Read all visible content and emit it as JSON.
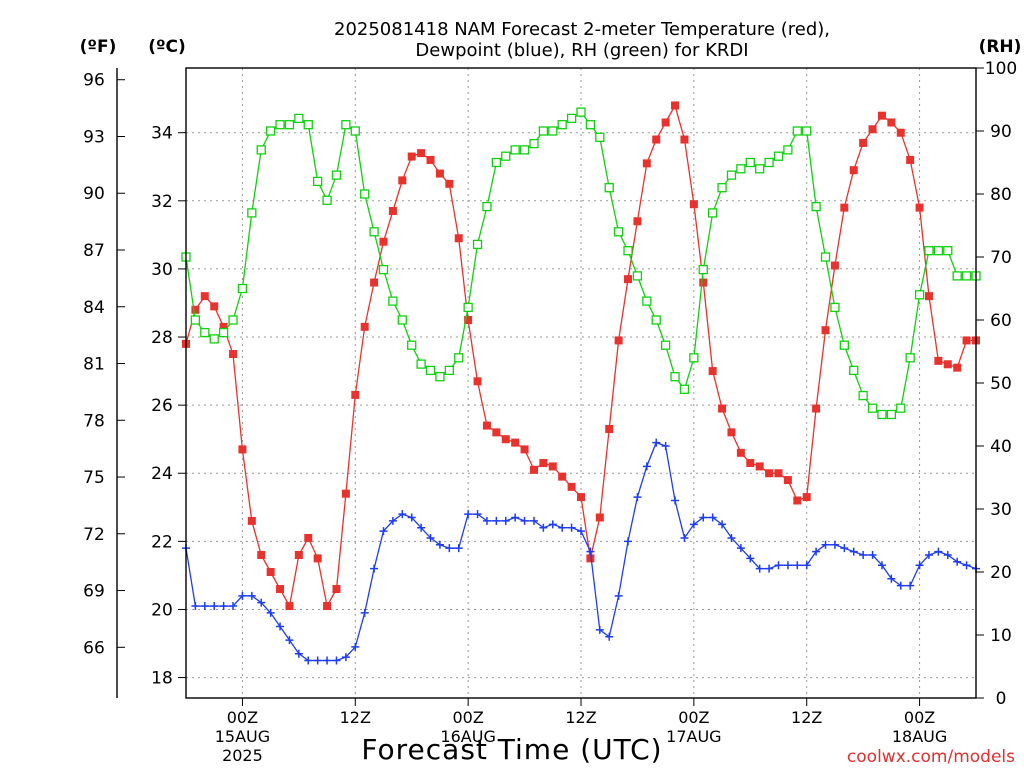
{
  "chart_data": {
    "type": "line",
    "title_line1": "2025081418 NAM Forecast 2-meter Temperature (red),",
    "title_line2": "Dewpoint (blue), RH (green) for KRDI",
    "xlabel": "Forecast Time (UTC)",
    "left_axis_label_f": "(ºF)",
    "left_axis_label_c": "(ºC)",
    "right_axis_label": "(RH)",
    "watermark": "coolwx.com/models",
    "x_start_hour": 18,
    "x_end_hour": 102,
    "ylim_c": [
      17.4,
      35.9
    ],
    "ylim_rh": [
      0,
      100
    ],
    "y_ticks_c": [
      18,
      20,
      22,
      24,
      26,
      28,
      30,
      32,
      34
    ],
    "y_ticks_f": [
      66,
      69,
      72,
      75,
      78,
      81,
      84,
      87,
      90,
      93,
      96
    ],
    "y_ticks_rh": [
      0,
      10,
      20,
      30,
      40,
      50,
      60,
      70,
      80,
      90,
      100
    ],
    "x_ticks": [
      {
        "hour": 24,
        "label": "00Z",
        "sub1": "15AUG",
        "sub2": "2025"
      },
      {
        "hour": 36,
        "label": "12Z",
        "sub1": "",
        "sub2": ""
      },
      {
        "hour": 48,
        "label": "00Z",
        "sub1": "16AUG",
        "sub2": ""
      },
      {
        "hour": 60,
        "label": "12Z",
        "sub1": "",
        "sub2": ""
      },
      {
        "hour": 72,
        "label": "00Z",
        "sub1": "17AUG",
        "sub2": ""
      },
      {
        "hour": 84,
        "label": "12Z",
        "sub1": "",
        "sub2": ""
      },
      {
        "hour": 96,
        "label": "00Z",
        "sub1": "18AUG",
        "sub2": ""
      }
    ],
    "grid": true,
    "colors": {
      "temperature": "#e8322e",
      "dewpoint": "#1f3cf0",
      "rh": "#10d010",
      "grid": "#9a9a9a"
    },
    "series": [
      {
        "name": "Temperature",
        "key": "temperature",
        "units": "C",
        "marker": "square-filled",
        "x": [
          18,
          19,
          20,
          21,
          22,
          23,
          24,
          25,
          26,
          27,
          28,
          29,
          30,
          31,
          32,
          33,
          34,
          35,
          36,
          37,
          38,
          39,
          40,
          41,
          42,
          43,
          44,
          45,
          46,
          47,
          48,
          49,
          50,
          51,
          52,
          53,
          54,
          55,
          56,
          57,
          58,
          59,
          60,
          61,
          62,
          63,
          64,
          65,
          66,
          67,
          68,
          69,
          70,
          71,
          72,
          73,
          74,
          75,
          76,
          77,
          78,
          79,
          80,
          81,
          82,
          83,
          84,
          85,
          86,
          87,
          88,
          89,
          90,
          91,
          92,
          93,
          94,
          95,
          96,
          97,
          98,
          99,
          100,
          101,
          102
        ],
        "values": [
          27.8,
          28.8,
          29.2,
          28.9,
          28.3,
          27.5,
          24.7,
          22.6,
          21.6,
          21.1,
          20.6,
          20.1,
          21.6,
          22.1,
          21.5,
          20.1,
          20.6,
          23.4,
          26.3,
          28.3,
          29.6,
          30.8,
          31.7,
          32.6,
          33.3,
          33.4,
          33.2,
          32.8,
          32.5,
          30.9,
          28.5,
          26.7,
          25.4,
          25.2,
          25.0,
          24.9,
          24.7,
          24.1,
          24.3,
          24.2,
          23.9,
          23.6,
          23.3,
          21.5,
          22.7,
          25.3,
          27.9,
          29.7,
          31.4,
          33.1,
          33.8,
          34.3,
          34.8,
          33.8,
          31.9,
          29.6,
          27.0,
          25.9,
          25.2,
          24.6,
          24.3,
          24.2,
          24.0,
          24.0,
          23.8,
          23.2,
          23.3,
          25.9,
          28.2,
          30.1,
          31.8,
          32.9,
          33.7,
          34.1,
          34.5,
          34.3,
          34.0,
          33.2,
          31.8,
          29.2,
          27.3,
          27.2,
          27.1,
          27.9,
          27.9
        ]
      },
      {
        "name": "Dewpoint",
        "key": "dewpoint",
        "units": "C",
        "marker": "plus",
        "x": [
          18,
          19,
          20,
          21,
          22,
          23,
          24,
          25,
          26,
          27,
          28,
          29,
          30,
          31,
          32,
          33,
          34,
          35,
          36,
          37,
          38,
          39,
          40,
          41,
          42,
          43,
          44,
          45,
          46,
          47,
          48,
          49,
          50,
          51,
          52,
          53,
          54,
          55,
          56,
          57,
          58,
          59,
          60,
          61,
          62,
          63,
          64,
          65,
          66,
          67,
          68,
          69,
          70,
          71,
          72,
          73,
          74,
          75,
          76,
          77,
          78,
          79,
          80,
          81,
          82,
          83,
          84,
          85,
          86,
          87,
          88,
          89,
          90,
          91,
          92,
          93,
          94,
          95,
          96,
          97,
          98,
          99,
          100,
          101,
          102
        ],
        "values": [
          21.8,
          20.1,
          20.1,
          20.1,
          20.1,
          20.1,
          20.4,
          20.4,
          20.2,
          19.9,
          19.5,
          19.1,
          18.7,
          18.5,
          18.5,
          18.5,
          18.5,
          18.6,
          18.9,
          19.9,
          21.2,
          22.3,
          22.6,
          22.8,
          22.7,
          22.4,
          22.1,
          21.9,
          21.8,
          21.8,
          22.8,
          22.8,
          22.6,
          22.6,
          22.6,
          22.7,
          22.6,
          22.6,
          22.4,
          22.5,
          22.4,
          22.4,
          22.3,
          21.7,
          19.4,
          19.2,
          20.4,
          22.0,
          23.3,
          24.2,
          24.9,
          24.8,
          23.2,
          22.1,
          22.5,
          22.7,
          22.7,
          22.5,
          22.1,
          21.8,
          21.5,
          21.2,
          21.2,
          21.3,
          21.3,
          21.3,
          21.3,
          21.7,
          21.9,
          21.9,
          21.8,
          21.7,
          21.6,
          21.6,
          21.3,
          20.9,
          20.7,
          20.7,
          21.3,
          21.6,
          21.7,
          21.6,
          21.4,
          21.3,
          21.2
        ]
      },
      {
        "name": "RH",
        "key": "rh",
        "units": "%",
        "marker": "square-open",
        "x": [
          18,
          19,
          20,
          21,
          22,
          23,
          24,
          25,
          26,
          27,
          28,
          29,
          30,
          31,
          32,
          33,
          34,
          35,
          36,
          37,
          38,
          39,
          40,
          41,
          42,
          43,
          44,
          45,
          46,
          47,
          48,
          49,
          50,
          51,
          52,
          53,
          54,
          55,
          56,
          57,
          58,
          59,
          60,
          61,
          62,
          63,
          64,
          65,
          66,
          67,
          68,
          69,
          70,
          71,
          72,
          73,
          74,
          75,
          76,
          77,
          78,
          79,
          80,
          81,
          82,
          83,
          84,
          85,
          86,
          87,
          88,
          89,
          90,
          91,
          92,
          93,
          94,
          95,
          96,
          97,
          98,
          99,
          100,
          101,
          102
        ],
        "values": [
          70,
          60,
          58,
          57,
          58,
          60,
          65,
          77,
          87,
          90,
          91,
          91,
          92,
          91,
          82,
          79,
          83,
          91,
          90,
          80,
          74,
          68,
          63,
          60,
          56,
          53,
          52,
          51,
          52,
          54,
          62,
          72,
          78,
          85,
          86,
          87,
          87,
          88,
          90,
          90,
          91,
          92,
          93,
          91,
          89,
          81,
          74,
          71,
          67,
          63,
          60,
          56,
          51,
          49,
          54,
          68,
          77,
          81,
          83,
          84,
          85,
          84,
          85,
          86,
          87,
          90,
          90,
          78,
          70,
          62,
          56,
          52,
          48,
          46,
          45,
          45,
          46,
          54,
          64,
          71,
          71,
          71,
          67,
          67,
          67
        ]
      }
    ]
  }
}
